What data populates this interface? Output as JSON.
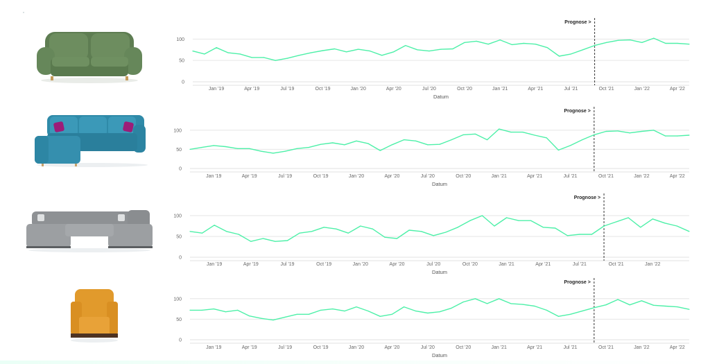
{
  "colors": {
    "line": "#4df0a8",
    "grid": "#e6e6e6",
    "forecast_marker": "#333333"
  },
  "products": [
    {
      "name": "sofa-green",
      "icon": "green-two-seat-sofa"
    },
    {
      "name": "sofa-blue-corner",
      "icon": "blue-corner-sofa"
    },
    {
      "name": "sofa-grey-u",
      "icon": "grey-u-shaped-sofa"
    },
    {
      "name": "armchair-orange",
      "icon": "orange-armchair"
    }
  ],
  "chart_data": [
    {
      "type": "line",
      "xlabel": "Datum",
      "ylim": [
        0,
        120
      ],
      "yticks": [
        0,
        50,
        100
      ],
      "xticks": [
        "Jan '19",
        "Apr '19",
        "Jul '19",
        "Oct '19",
        "Jan '20",
        "Apr '20",
        "Jul '20",
        "Oct '20",
        "Jan '21",
        "Apr '21",
        "Jul '21",
        "Oct '21",
        "Jan '22",
        "Apr '22"
      ],
      "x_range": [
        "2018-11",
        "2022-05"
      ],
      "forecast_start": "2021-09",
      "annotation": "Prognose >",
      "grid": true,
      "series": [
        {
          "x": [
            "2018-11",
            "2018-12",
            "2019-01",
            "2019-02",
            "2019-03",
            "2019-04",
            "2019-05",
            "2019-06",
            "2019-07",
            "2019-08",
            "2019-09",
            "2019-10",
            "2019-11",
            "2019-12",
            "2020-01",
            "2020-02",
            "2020-03",
            "2020-04",
            "2020-05",
            "2020-06",
            "2020-07",
            "2020-08",
            "2020-09",
            "2020-10",
            "2020-11",
            "2020-12",
            "2021-01",
            "2021-02",
            "2021-03",
            "2021-04",
            "2021-05",
            "2021-06",
            "2021-07",
            "2021-08",
            "2021-09",
            "2021-10",
            "2021-11",
            "2021-12",
            "2022-01",
            "2022-02",
            "2022-03",
            "2022-04",
            "2022-05"
          ],
          "values": [
            72,
            65,
            80,
            68,
            65,
            57,
            57,
            50,
            55,
            62,
            68,
            73,
            77,
            70,
            76,
            72,
            62,
            70,
            85,
            75,
            72,
            76,
            77,
            92,
            95,
            88,
            98,
            87,
            90,
            88,
            80,
            60,
            65,
            75,
            85,
            92,
            97,
            98,
            92,
            102,
            90,
            90,
            88
          ]
        }
      ]
    },
    {
      "type": "line",
      "xlabel": "Datum",
      "ylim": [
        0,
        125
      ],
      "yticks": [
        0,
        50,
        100
      ],
      "xticks": [
        "Jan '19",
        "Apr '19",
        "Jul '19",
        "Oct '19",
        "Jan '20",
        "Apr '20",
        "Jul '20",
        "Oct '20",
        "Jan '21",
        "Apr '21",
        "Jul '21",
        "Oct '21",
        "Jan '22",
        "Apr '22"
      ],
      "x_range": [
        "2018-11",
        "2022-05"
      ],
      "forecast_start": "2021-09",
      "annotation": "Prognose >",
      "grid": true,
      "series": [
        {
          "x": [
            "2018-11",
            "2018-12",
            "2019-01",
            "2019-02",
            "2019-03",
            "2019-04",
            "2019-05",
            "2019-06",
            "2019-07",
            "2019-08",
            "2019-09",
            "2019-10",
            "2019-11",
            "2019-12",
            "2020-01",
            "2020-02",
            "2020-03",
            "2020-04",
            "2020-05",
            "2020-06",
            "2020-07",
            "2020-08",
            "2020-09",
            "2020-10",
            "2020-11",
            "2020-12",
            "2021-01",
            "2021-02",
            "2021-03",
            "2021-04",
            "2021-05",
            "2021-06",
            "2021-07",
            "2021-08",
            "2021-09",
            "2021-10",
            "2021-11",
            "2021-12",
            "2022-01",
            "2022-02",
            "2022-03",
            "2022-04",
            "2022-05"
          ],
          "values": [
            50,
            55,
            60,
            57,
            52,
            52,
            45,
            40,
            45,
            52,
            55,
            63,
            67,
            62,
            72,
            65,
            47,
            62,
            75,
            72,
            62,
            63,
            75,
            88,
            90,
            75,
            103,
            95,
            95,
            87,
            80,
            48,
            60,
            75,
            88,
            97,
            98,
            93,
            97,
            100,
            85,
            85,
            87
          ]
        }
      ]
    },
    {
      "type": "line",
      "xlabel": "Datum",
      "ylim": [
        0,
        125
      ],
      "yticks": [
        0,
        50,
        100
      ],
      "xticks": [
        "Jan '19",
        "Apr '19",
        "Jul '19",
        "Oct '19",
        "Jan '20",
        "Apr '20",
        "Jul '20",
        "Oct '20",
        "Jan '21",
        "Apr '21",
        "Jul '21",
        "Oct '21",
        "Jan '22"
      ],
      "x_range": [
        "2018-11",
        "2022-04"
      ],
      "forecast_start": "2021-09",
      "annotation": "Prognose >",
      "grid": true,
      "series": [
        {
          "x": [
            "2018-11",
            "2018-12",
            "2019-01",
            "2019-02",
            "2019-03",
            "2019-04",
            "2019-05",
            "2019-06",
            "2019-07",
            "2019-08",
            "2019-09",
            "2019-10",
            "2019-11",
            "2019-12",
            "2020-01",
            "2020-02",
            "2020-03",
            "2020-04",
            "2020-05",
            "2020-06",
            "2020-07",
            "2020-08",
            "2020-09",
            "2020-10",
            "2020-11",
            "2020-12",
            "2021-01",
            "2021-02",
            "2021-03",
            "2021-04",
            "2021-05",
            "2021-06",
            "2021-07",
            "2021-08",
            "2021-09",
            "2021-10",
            "2021-11",
            "2021-12",
            "2022-01",
            "2022-02",
            "2022-03",
            "2022-04"
          ],
          "values": [
            62,
            58,
            77,
            62,
            55,
            38,
            45,
            38,
            40,
            58,
            62,
            72,
            68,
            58,
            75,
            68,
            48,
            45,
            65,
            62,
            52,
            60,
            72,
            88,
            100,
            75,
            95,
            88,
            88,
            72,
            70,
            52,
            55,
            55,
            75,
            85,
            95,
            72,
            92,
            82,
            75,
            62
          ]
        }
      ]
    },
    {
      "type": "line",
      "xlabel": "Datum",
      "ylim": [
        0,
        125
      ],
      "yticks": [
        0,
        50,
        100
      ],
      "xticks": [
        "Jan '19",
        "Apr '19",
        "Jul '19",
        "Oct '19",
        "Jan '20",
        "Apr '20",
        "Jul '20",
        "Oct '20",
        "Jan '21",
        "Apr '21",
        "Jul '21",
        "Oct '21",
        "Jan '22",
        "Apr '22"
      ],
      "x_range": [
        "2018-11",
        "2022-05"
      ],
      "forecast_start": "2021-09",
      "annotation": "Prognose >",
      "grid": true,
      "series": [
        {
          "x": [
            "2018-11",
            "2018-12",
            "2019-01",
            "2019-02",
            "2019-03",
            "2019-04",
            "2019-05",
            "2019-06",
            "2019-07",
            "2019-08",
            "2019-09",
            "2019-10",
            "2019-11",
            "2019-12",
            "2020-01",
            "2020-02",
            "2020-03",
            "2020-04",
            "2020-05",
            "2020-06",
            "2020-07",
            "2020-08",
            "2020-09",
            "2020-10",
            "2020-11",
            "2020-12",
            "2021-01",
            "2021-02",
            "2021-03",
            "2021-04",
            "2021-05",
            "2021-06",
            "2021-07",
            "2021-08",
            "2021-09",
            "2021-10",
            "2021-11",
            "2021-12",
            "2022-01",
            "2022-02",
            "2022-03",
            "2022-04",
            "2022-05"
          ],
          "values": [
            72,
            72,
            75,
            68,
            72,
            58,
            52,
            48,
            55,
            62,
            62,
            72,
            75,
            70,
            80,
            70,
            57,
            62,
            80,
            70,
            65,
            68,
            77,
            92,
            100,
            88,
            100,
            88,
            86,
            82,
            72,
            57,
            62,
            70,
            78,
            85,
            98,
            85,
            95,
            84,
            82,
            80,
            74
          ]
        }
      ]
    }
  ]
}
